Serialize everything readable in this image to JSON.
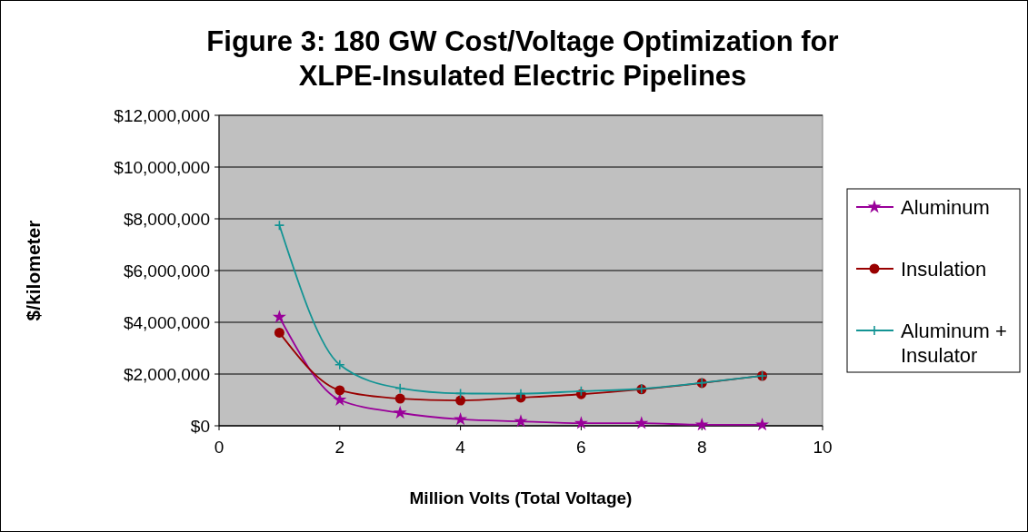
{
  "chart_data": {
    "type": "line",
    "title": "Figure 3: 180 GW Cost/Voltage Optimization for XLPE-Insulated Electric Pipelines",
    "xlabel": "Million Volts (Total Voltage)",
    "ylabel": "$/kilometer",
    "x": [
      1,
      2,
      3,
      4,
      5,
      6,
      7,
      8,
      9
    ],
    "series": [
      {
        "name": "Aluminum",
        "color": "#990099",
        "marker": "star",
        "values": [
          4200000,
          1000000,
          500000,
          250000,
          170000,
          100000,
          100000,
          40000,
          40000
        ]
      },
      {
        "name": "Insulation",
        "color": "#990000",
        "marker": "circle",
        "values": [
          3600000,
          1370000,
          1050000,
          980000,
          1090000,
          1220000,
          1410000,
          1650000,
          1930000
        ]
      },
      {
        "name": "Aluminum + Insulator",
        "color": "#139494",
        "marker": "cross",
        "values": [
          7750000,
          2360000,
          1450000,
          1250000,
          1240000,
          1340000,
          1430000,
          1660000,
          1930000
        ]
      }
    ],
    "xlim": [
      0,
      10
    ],
    "xticks": [
      0,
      2,
      4,
      6,
      8,
      10
    ],
    "ylim": [
      0,
      12000000
    ],
    "yticks": [
      {
        "value": 0,
        "label": "$0"
      },
      {
        "value": 2000000,
        "label": "$2,000,000"
      },
      {
        "value": 4000000,
        "label": "$4,000,000"
      },
      {
        "value": 6000000,
        "label": "$6,000,000"
      },
      {
        "value": 8000000,
        "label": "$8,000,000"
      },
      {
        "value": 10000000,
        "label": "$10,000,000"
      },
      {
        "value": 12000000,
        "label": "$12,000,000"
      }
    ],
    "grid": "y",
    "legend": "right"
  }
}
